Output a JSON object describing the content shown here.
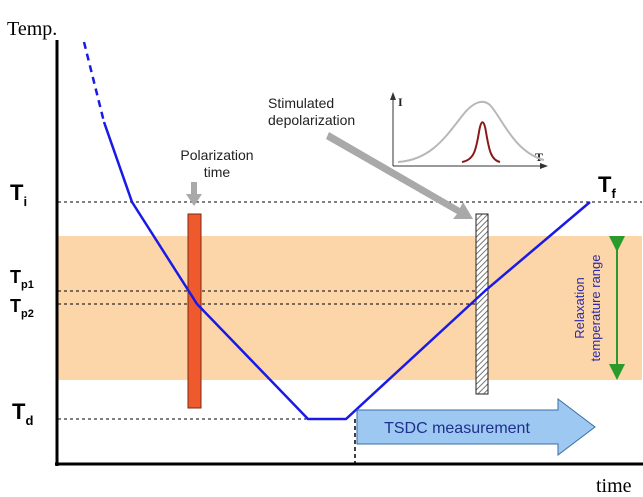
{
  "axes": {
    "y_label": "Temp.",
    "x_label": "time"
  },
  "levels": {
    "ti": {
      "main": "T",
      "sub": "i"
    },
    "tf": {
      "main": "T",
      "sub": "f"
    },
    "tp1": {
      "main": "T",
      "sub": "p1"
    },
    "tp2": {
      "main": "T",
      "sub": "p2"
    },
    "td": {
      "main": "T",
      "sub": "d"
    }
  },
  "annotations": {
    "polarization_line1": "Polarization",
    "polarization_line2": "time",
    "stimulated_line1": "Stimulated",
    "stimulated_line2": "depolarization",
    "relaxation_line1": "Relaxation",
    "relaxation_line2": "temperature range",
    "tsdc_label": "TSDC measurement",
    "inset_y": "I",
    "inset_x": "T"
  },
  "colors": {
    "temperature_curve": "#1a1ae6",
    "relaxation_band": "#fcd5a8",
    "polarization_bar": "#ee5a2e",
    "tsdc_arrow_fill": "#9cc8f2",
    "tsdc_text": "#1f2f8c",
    "relaxation_text": "#2b2ba8",
    "range_arrow": "#2a9a2a",
    "inset_broad_peak": "#b8b8b8",
    "inset_narrow_peak": "#8a1a1a",
    "pointer_arrow": "#a9a9a9"
  }
}
